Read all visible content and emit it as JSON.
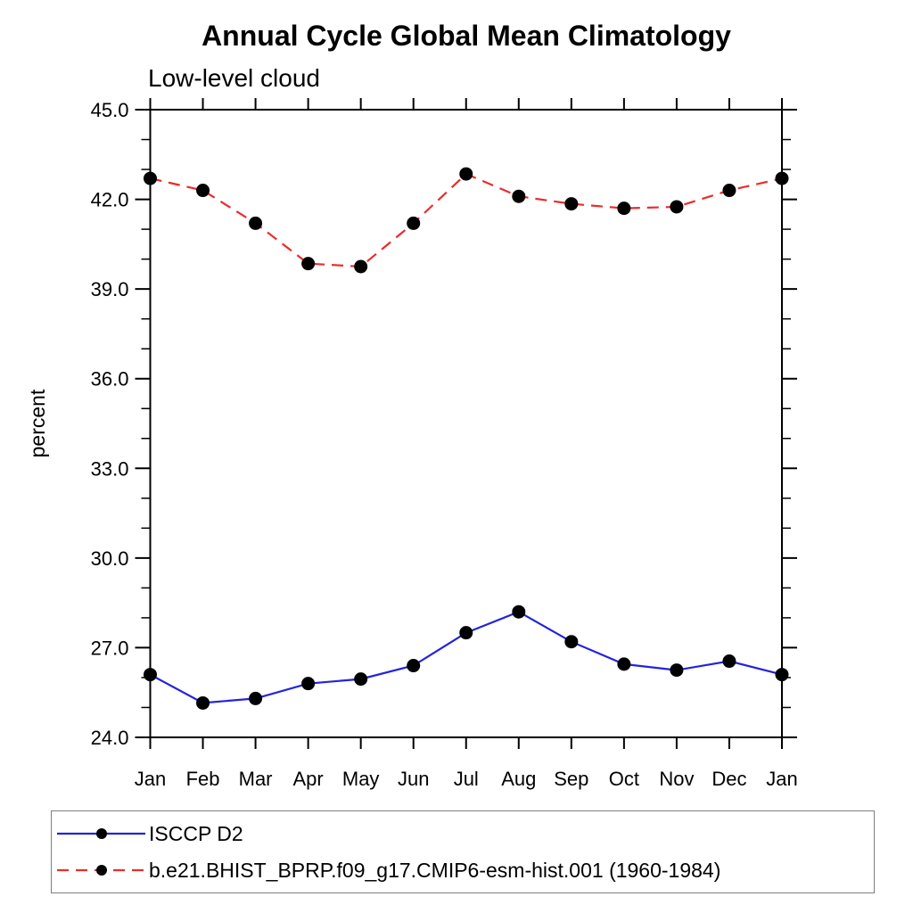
{
  "chart_data": {
    "type": "line",
    "title": "Annual Cycle Global Mean Climatology",
    "subtitle": "Low-level cloud",
    "xlabel": "",
    "ylabel": "percent",
    "categories": [
      "Jan",
      "Feb",
      "Mar",
      "Apr",
      "May",
      "Jun",
      "Jul",
      "Aug",
      "Sep",
      "Oct",
      "Nov",
      "Dec",
      "Jan"
    ],
    "ylim": [
      24.0,
      45.0
    ],
    "ytick_major_values": [
      24,
      27,
      30,
      33,
      36,
      39,
      42,
      45
    ],
    "ytick_major_labels": [
      "24.0",
      "27.0",
      "30.0",
      "33.0",
      "36.0",
      "39.0",
      "42.0",
      "45.0"
    ],
    "ytick_minor_step": 1.0,
    "grid": false,
    "legend_position": "bottom-left-box",
    "series": [
      {
        "name": "ISCCP D2",
        "color": "#2323dc",
        "line_style": "solid",
        "marker": "circle",
        "marker_color": "#000000",
        "values": [
          26.1,
          25.15,
          25.3,
          25.8,
          25.95,
          26.4,
          27.5,
          28.2,
          27.2,
          26.45,
          26.25,
          26.55,
          26.1
        ]
      },
      {
        "name": "b.e21.BHIST_BPRP.f09_g17.CMIP6-esm-hist.001 (1960-1984)",
        "color": "#ea2c2c",
        "line_style": "dashed",
        "marker": "circle",
        "marker_color": "#000000",
        "values": [
          42.7,
          42.3,
          41.2,
          39.85,
          39.75,
          41.2,
          42.85,
          42.1,
          41.85,
          41.7,
          41.75,
          42.3,
          42.7
        ]
      }
    ]
  }
}
